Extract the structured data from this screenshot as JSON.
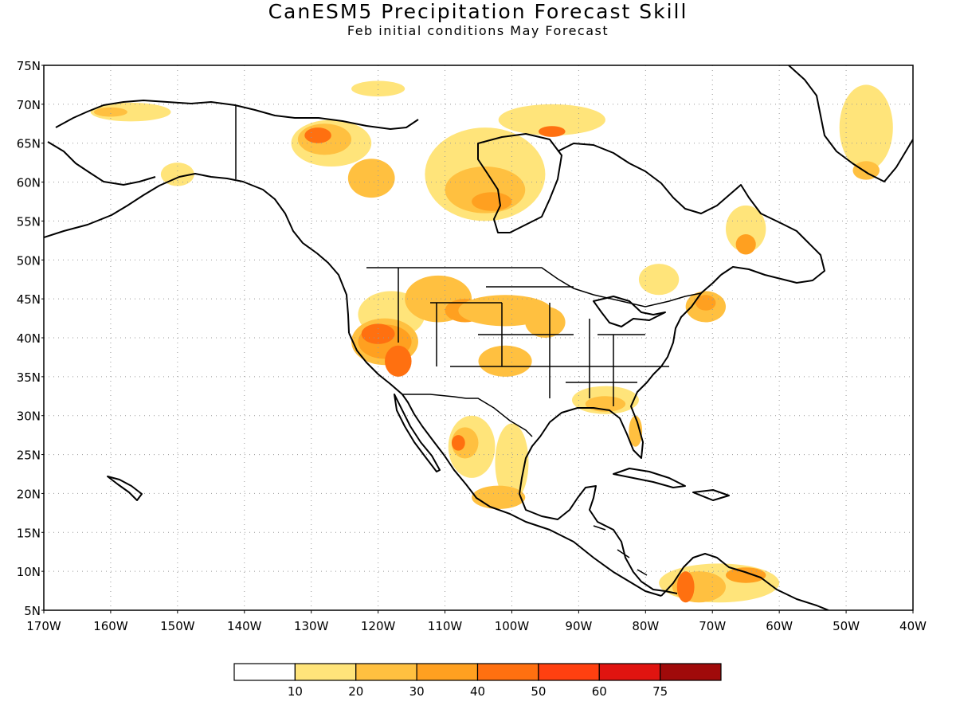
{
  "title": "CanESM5 Precipitation Forecast Skill",
  "subtitle": "Feb initial conditions  May Forecast",
  "map": {
    "lon_range": [
      -170,
      -40
    ],
    "lat_range": [
      5,
      75
    ],
    "grid": "dotted",
    "lat_labels": [
      "75N",
      "70N",
      "65N",
      "60N",
      "55N",
      "50N",
      "45N",
      "40N",
      "35N",
      "30N",
      "25N",
      "20N",
      "15N",
      "10N",
      "5N"
    ],
    "lon_labels": [
      "170W",
      "160W",
      "150W",
      "140W",
      "130W",
      "120W",
      "110W",
      "100W",
      "90W",
      "80W",
      "70W",
      "60W",
      "50W",
      "40W"
    ]
  },
  "colorbar": {
    "labels": [
      "10",
      "20",
      "30",
      "40",
      "50",
      "60",
      "75"
    ],
    "colors": [
      "#ffffff",
      "#ffe47a",
      "#ffc040",
      "#ffa020",
      "#ff7010",
      "#ff4010",
      "#e01410",
      "#a00a0a"
    ]
  },
  "skill_regions": [
    {
      "name": "alaska-north",
      "lon": -157,
      "lat": 69,
      "rx": 6,
      "ry": 1.2,
      "level": 1
    },
    {
      "name": "alaska-north-core",
      "lon": -160,
      "lat": 69,
      "rx": 2.5,
      "ry": 0.6,
      "level": 2
    },
    {
      "name": "alaska-south",
      "lon": -150,
      "lat": 61,
      "rx": 2.5,
      "ry": 1.5,
      "level": 1
    },
    {
      "name": "yukon",
      "lon": -127,
      "lat": 65,
      "rx": 6,
      "ry": 3,
      "level": 1
    },
    {
      "name": "yukon-mid",
      "lon": -128,
      "lat": 65.5,
      "rx": 4,
      "ry": 2,
      "level": 2
    },
    {
      "name": "yukon-core",
      "lon": -129,
      "lat": 66,
      "rx": 2,
      "ry": 1,
      "level": 4
    },
    {
      "name": "nwt",
      "lon": -121,
      "lat": 60.5,
      "rx": 3.5,
      "ry": 2.5,
      "level": 2
    },
    {
      "name": "arctic-islands",
      "lon": -120,
      "lat": 72,
      "rx": 4,
      "ry": 1,
      "level": 1
    },
    {
      "name": "hudson-west",
      "lon": -104,
      "lat": 61,
      "rx": 9,
      "ry": 6,
      "level": 1
    },
    {
      "name": "hudson-west-mid",
      "lon": -104,
      "lat": 59,
      "rx": 6,
      "ry": 3,
      "level": 2
    },
    {
      "name": "hudson-west-core",
      "lon": -103,
      "lat": 57.5,
      "rx": 3,
      "ry": 1.2,
      "level": 3
    },
    {
      "name": "baffin-north",
      "lon": -94,
      "lat": 68,
      "rx": 8,
      "ry": 2,
      "level": 1
    },
    {
      "name": "baffin-core",
      "lon": -94,
      "lat": 66.5,
      "rx": 2,
      "ry": 0.7,
      "level": 4
    },
    {
      "name": "labrador",
      "lon": -65,
      "lat": 54,
      "rx": 3,
      "ry": 3,
      "level": 1
    },
    {
      "name": "labrador-core",
      "lon": -65,
      "lat": 52,
      "rx": 1.5,
      "ry": 1.3,
      "level": 3
    },
    {
      "name": "greenland",
      "lon": -47,
      "lat": 67,
      "rx": 4,
      "ry": 5.5,
      "level": 1
    },
    {
      "name": "greenland-core",
      "lon": -47,
      "lat": 61.5,
      "rx": 2,
      "ry": 1.2,
      "level": 2
    },
    {
      "name": "quebec-south",
      "lon": -78,
      "lat": 47.5,
      "rx": 3,
      "ry": 2,
      "level": 1
    },
    {
      "name": "newengland",
      "lon": -71,
      "lat": 44,
      "rx": 3,
      "ry": 2,
      "level": 2
    },
    {
      "name": "newengland-core",
      "lon": -71,
      "lat": 44.5,
      "rx": 1.5,
      "ry": 1,
      "level": 3
    },
    {
      "name": "pnw",
      "lon": -118,
      "lat": 43,
      "rx": 5,
      "ry": 3,
      "level": 1
    },
    {
      "name": "california",
      "lon": -119,
      "lat": 39.5,
      "rx": 5,
      "ry": 3,
      "level": 2
    },
    {
      "name": "california-mid",
      "lon": -119,
      "lat": 39.5,
      "rx": 4,
      "ry": 2.2,
      "level": 3
    },
    {
      "name": "nevada-core",
      "lon": -120,
      "lat": 40.5,
      "rx": 2.5,
      "ry": 1.3,
      "level": 4
    },
    {
      "name": "socal-core",
      "lon": -117,
      "lat": 37,
      "rx": 2,
      "ry": 2,
      "level": 4
    },
    {
      "name": "montana",
      "lon": -111,
      "lat": 45,
      "rx": 5,
      "ry": 3,
      "level": 2
    },
    {
      "name": "wyoming",
      "lon": -107,
      "lat": 43.5,
      "rx": 3,
      "ry": 1.5,
      "level": 3
    },
    {
      "name": "dakotas",
      "lon": -101,
      "lat": 43.5,
      "rx": 7,
      "ry": 2,
      "level": 2
    },
    {
      "name": "iowa",
      "lon": -95,
      "lat": 42,
      "rx": 3,
      "ry": 2,
      "level": 2
    },
    {
      "name": "kansas",
      "lon": -101,
      "lat": 37,
      "rx": 4,
      "ry": 2,
      "level": 2
    },
    {
      "name": "gulf-coast",
      "lon": -86,
      "lat": 32,
      "rx": 5,
      "ry": 1.8,
      "level": 1
    },
    {
      "name": "gulf-coast-mid",
      "lon": -86,
      "lat": 31.5,
      "rx": 3,
      "ry": 1,
      "level": 2
    },
    {
      "name": "florida",
      "lon": -81.5,
      "lat": 28,
      "rx": 1,
      "ry": 2,
      "level": 2
    },
    {
      "name": "mexico-north",
      "lon": -106,
      "lat": 26,
      "rx": 3.5,
      "ry": 4,
      "level": 1
    },
    {
      "name": "mexico-north-mid",
      "lon": -107,
      "lat": 26.5,
      "rx": 2,
      "ry": 2,
      "level": 2
    },
    {
      "name": "mexico-core",
      "lon": -108,
      "lat": 26.5,
      "rx": 1,
      "ry": 1,
      "level": 4
    },
    {
      "name": "mexico-east",
      "lon": -100,
      "lat": 24,
      "rx": 2.5,
      "ry": 5,
      "level": 1
    },
    {
      "name": "mexico-south",
      "lon": -102,
      "lat": 19.5,
      "rx": 4,
      "ry": 1.5,
      "level": 2
    },
    {
      "name": "venezuela",
      "lon": -69,
      "lat": 8.5,
      "rx": 9,
      "ry": 2.5,
      "level": 1
    },
    {
      "name": "venezuela-mid",
      "lon": -72,
      "lat": 8,
      "rx": 4,
      "ry": 2,
      "level": 2
    },
    {
      "name": "colombia-core",
      "lon": -74,
      "lat": 8,
      "rx": 1.3,
      "ry": 2,
      "level": 4
    },
    {
      "name": "venezuela-east",
      "lon": -65,
      "lat": 9.5,
      "rx": 3,
      "ry": 1,
      "level": 3
    }
  ]
}
